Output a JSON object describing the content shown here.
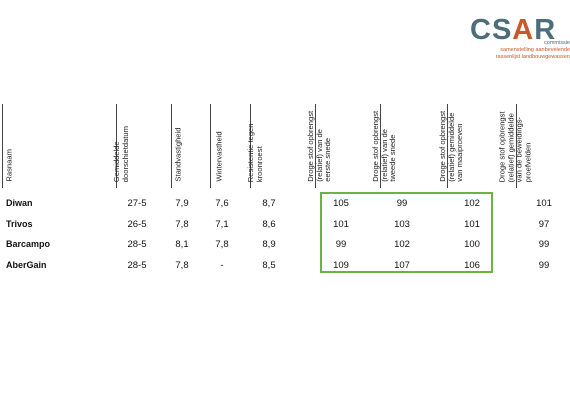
{
  "logo": {
    "word_part1": "CS",
    "word_part2": "A",
    "word_part3": "R",
    "line1": "commissie",
    "line2": "samenstelling aanbevelende",
    "line3": "rassenlijst landbouwgewassen"
  },
  "headers": [
    "Rasnaam",
    "Gemiddelde\ndoorschietdatum",
    "Standvastigheid",
    "Wintervastheid",
    "Resistentie tegen\nkroonroest",
    "Droge stof opbrengst\n(relatief) van de\neerste snede",
    "Droge stof opbrengst\n(relatief) van de\ntweede snede",
    "Droge stof opbrengst\n(relatief) gemiddelde\nvan maaiproeven",
    "Droge stof opbrengst\n(relatief) gemiddelde\nvan de beweidings-\nproefvelden"
  ],
  "rows": [
    {
      "name": "Diwan",
      "values": [
        "27-5",
        "7,9",
        "7,6",
        "8,7",
        "105",
        "99",
        "102",
        "101"
      ]
    },
    {
      "name": "Trivos",
      "values": [
        "26-5",
        "7,8",
        "7,1",
        "8,6",
        "101",
        "103",
        "101",
        "97"
      ]
    },
    {
      "name": "Barcampo",
      "values": [
        "28-5",
        "8,1",
        "7,8",
        "8,9",
        "99",
        "102",
        "100",
        "99"
      ]
    },
    {
      "name": "AberGain",
      "values": [
        "28-5",
        "7,8",
        "-",
        "8,5",
        "109",
        "107",
        "106",
        "99"
      ]
    }
  ],
  "colors": {
    "highlight": "#6db33f",
    "logo_blue": "#4d6d7a",
    "logo_orange": "#c9572a"
  }
}
